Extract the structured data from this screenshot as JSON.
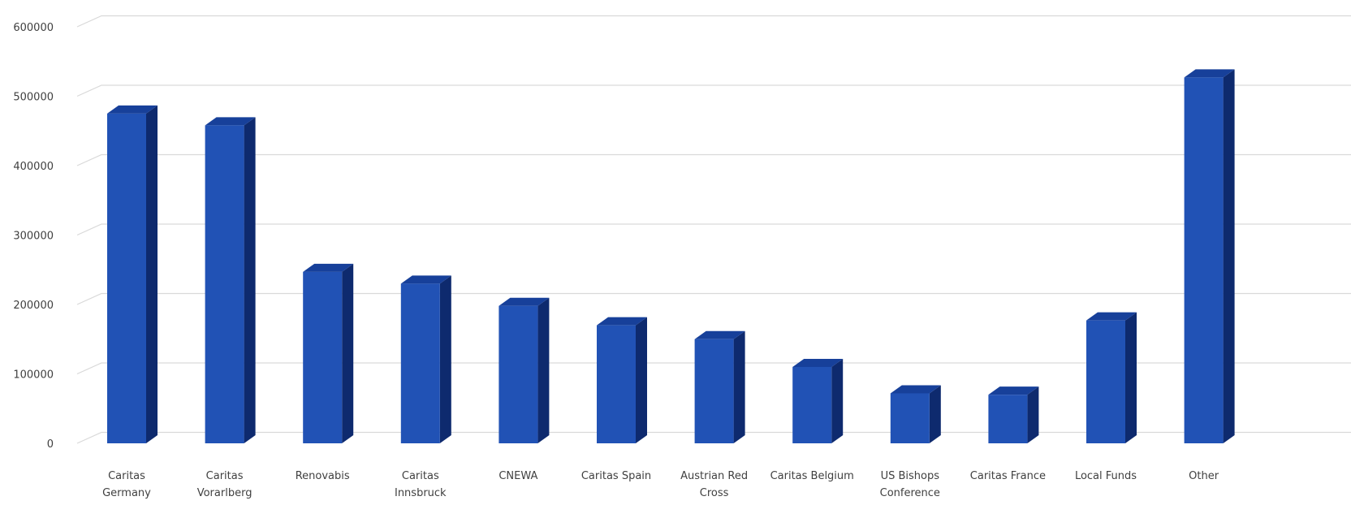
{
  "chart_data": {
    "type": "bar",
    "title": "",
    "xlabel": "",
    "ylabel": "",
    "ylim": [
      0,
      600000
    ],
    "yticks": [
      0,
      100000,
      200000,
      300000,
      400000,
      500000,
      600000
    ],
    "ytick_labels": [
      "0",
      "100000",
      "200000",
      "300000",
      "400000",
      "500000",
      "600000"
    ],
    "grid": true,
    "legend": "none",
    "style": "3d-column",
    "colors": {
      "bar_front": "#2152B5",
      "bar_side": "#0E2A6E",
      "bar_top": "#17409A",
      "grid": "#d9d9d9",
      "text": "#404040"
    },
    "categories": [
      [
        "Caritas",
        "Germany"
      ],
      [
        "Caritas",
        "Vorarlberg"
      ],
      [
        "Renovabis"
      ],
      [
        "Caritas",
        "Innsbruck"
      ],
      [
        "CNEWA"
      ],
      [
        "Caritas Spain"
      ],
      [
        "Austrian Red",
        "Cross"
      ],
      [
        "Caritas Belgium"
      ],
      [
        "US Bishops",
        "Conference"
      ],
      [
        "Caritas France"
      ],
      [
        "Local Funds"
      ],
      [
        "Other"
      ]
    ],
    "values": [
      475000,
      458000,
      247000,
      230000,
      198000,
      170000,
      150000,
      110000,
      72000,
      70000,
      177000,
      527000
    ]
  }
}
